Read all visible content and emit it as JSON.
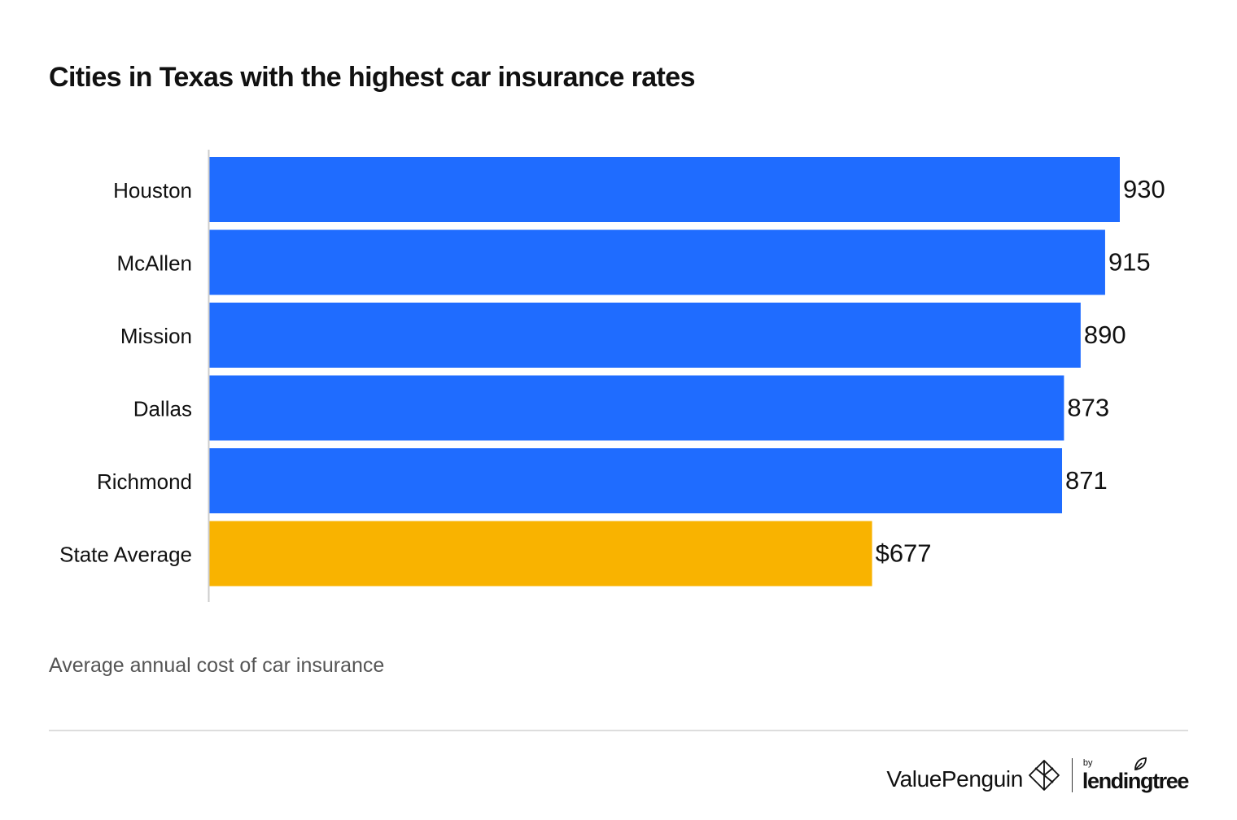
{
  "title": "Cities in Texas with the highest car insurance rates",
  "caption": "Average annual cost of car insurance",
  "colors": {
    "city_bar": "#1f6cff",
    "average_bar": "#f9b300",
    "axis": "#cccccc",
    "text": "#111111",
    "caption": "#555555"
  },
  "chart_data": {
    "type": "bar",
    "orientation": "horizontal",
    "title": "Cities in Texas with the highest car insurance rates",
    "categories": [
      "Houston",
      "McAllen",
      "Mission",
      "Dallas",
      "Richmond",
      "State Average"
    ],
    "values": [
      930,
      915,
      890,
      873,
      871,
      677
    ],
    "value_labels": [
      "930",
      "915",
      "890",
      "873",
      "871",
      "$677"
    ],
    "highlight_category": "State Average",
    "xlabel": "",
    "ylabel": "",
    "xlim": [
      0,
      930
    ],
    "grid": false,
    "legend": "none"
  },
  "footer": {
    "brand": "ValuePenguin",
    "brand_icon": "valuepenguin-logo-icon",
    "by": "by",
    "partner": "lendingtree",
    "partner_icon": "leaf-icon"
  }
}
